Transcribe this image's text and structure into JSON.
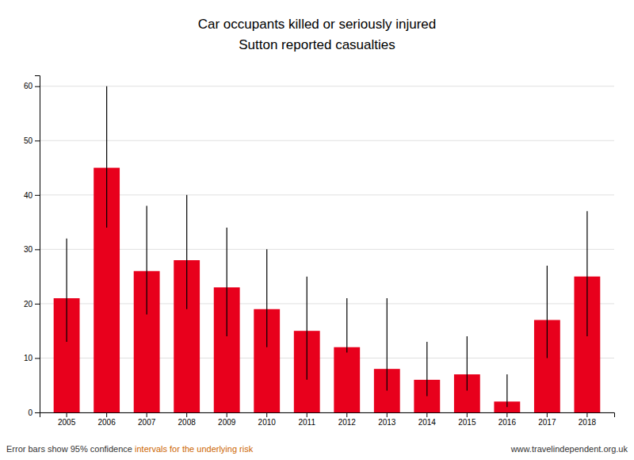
{
  "chart_data": {
    "type": "bar",
    "title": "Car occupants killed or seriously injured",
    "subtitle": "Sutton reported casualties",
    "categories": [
      2005,
      2006,
      2007,
      2008,
      2009,
      2010,
      2011,
      2012,
      2013,
      2014,
      2015,
      2016,
      2017,
      2018
    ],
    "values": [
      21,
      45,
      26,
      28,
      23,
      19,
      15,
      12,
      8,
      6,
      7,
      2,
      17,
      25
    ],
    "error_lower": [
      8,
      11,
      8,
      9,
      9,
      7,
      9,
      1,
      4,
      3,
      3,
      1,
      7,
      11
    ],
    "error_upper": [
      11,
      15,
      12,
      12,
      11,
      11,
      10,
      9,
      13,
      7,
      7,
      5,
      10,
      12
    ],
    "color": "#e8001c",
    "ylim": [
      0,
      62
    ],
    "yticks": [
      0,
      10,
      20,
      30,
      40,
      50,
      60
    ],
    "grid": true,
    "annotations": [
      {
        "text": "Error bars show 95% confidence "
      },
      {
        "text": "intervals for the underlying risk",
        "color": "#cc6600"
      },
      {
        "text": "www.travelindependent.org.uk"
      }
    ]
  }
}
